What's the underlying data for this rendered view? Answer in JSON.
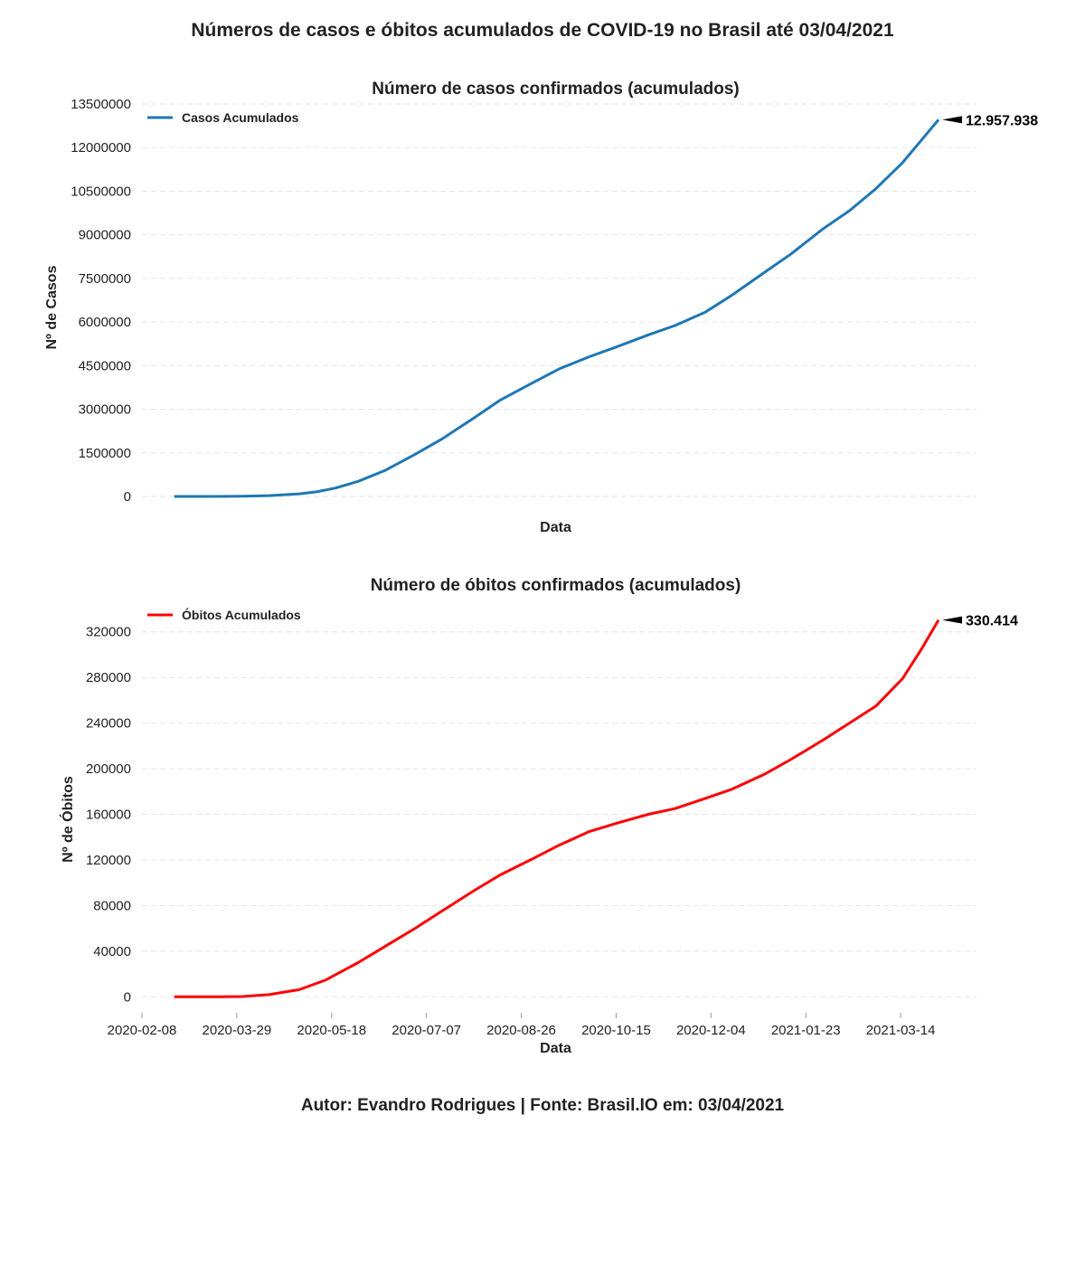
{
  "title": "Números de casos e óbitos acumulados de COVID-19 no Brasil até 03/04/2021",
  "footer": "Autor: Evandro Rodrigues | Fonte: Brasil.IO em: 03/04/2021",
  "chart_data": [
    {
      "type": "line",
      "title": "Número de casos confirmados (acumulados)",
      "xlabel": "Data",
      "ylabel": "Nº de Casos",
      "ylim": [
        0,
        13500000
      ],
      "yticks": [
        0,
        1500000,
        3000000,
        4500000,
        6000000,
        7500000,
        9000000,
        10500000,
        12000000,
        13500000
      ],
      "xticks": [],
      "x_range": [
        "2020-02-08",
        "2021-04-23"
      ],
      "grid": true,
      "legend_position": "top-left",
      "series": [
        {
          "name": "Casos Acumulados",
          "color": "#1f77b4",
          "x": [
            "2020-02-25",
            "2020-03-15",
            "2020-04-01",
            "2020-04-15",
            "2020-05-01",
            "2020-05-10",
            "2020-05-20",
            "2020-06-01",
            "2020-06-15",
            "2020-07-01",
            "2020-07-15",
            "2020-08-01",
            "2020-08-15",
            "2020-09-01",
            "2020-09-15",
            "2020-10-01",
            "2020-10-15",
            "2020-11-01",
            "2020-11-15",
            "2020-12-01",
            "2020-12-15",
            "2021-01-01",
            "2021-01-15",
            "2021-02-01",
            "2021-02-15",
            "2021-03-01",
            "2021-03-15",
            "2021-04-03"
          ],
          "y": [
            0,
            200,
            6800,
            28000,
            90000,
            160000,
            290000,
            520000,
            890000,
            1450000,
            1970000,
            2700000,
            3320000,
            3910000,
            4390000,
            4810000,
            5140000,
            5560000,
            5880000,
            6340000,
            6920000,
            7700000,
            8330000,
            9200000,
            9830000,
            10590000,
            11480000,
            12957938
          ],
          "end_label": "12.957.938"
        }
      ]
    },
    {
      "type": "line",
      "title": "Número de óbitos confirmados (acumulados)",
      "xlabel": "Data",
      "ylabel": "Nº de Óbitos",
      "ylim": [
        -18000,
        342000
      ],
      "yticks": [
        0,
        40000,
        80000,
        120000,
        160000,
        200000,
        240000,
        280000,
        320000
      ],
      "xticks": [
        "2020-02-08",
        "2020-03-29",
        "2020-05-18",
        "2020-07-07",
        "2020-08-26",
        "2020-10-15",
        "2020-12-04",
        "2021-01-23",
        "2021-03-14"
      ],
      "x_range": [
        "2020-02-08",
        "2021-04-23"
      ],
      "grid": true,
      "legend_position": "top-left",
      "series": [
        {
          "name": "Óbitos Acumulados",
          "color": "#ff0000",
          "x": [
            "2020-02-25",
            "2020-03-20",
            "2020-04-01",
            "2020-04-15",
            "2020-05-01",
            "2020-05-15",
            "2020-06-01",
            "2020-06-15",
            "2020-07-01",
            "2020-07-15",
            "2020-08-01",
            "2020-08-15",
            "2020-09-01",
            "2020-09-15",
            "2020-10-01",
            "2020-10-15",
            "2020-11-01",
            "2020-11-15",
            "2020-12-01",
            "2020-12-15",
            "2021-01-01",
            "2021-01-15",
            "2021-02-01",
            "2021-02-15",
            "2021-03-01",
            "2021-03-15",
            "2021-03-25",
            "2021-04-03"
          ],
          "y": [
            0,
            20,
            250,
            1900,
            6300,
            14800,
            30000,
            44000,
            60000,
            75000,
            93000,
            107000,
            121000,
            133000,
            145000,
            152000,
            160000,
            165000,
            174000,
            182000,
            195000,
            208000,
            225000,
            240000,
            255000,
            279000,
            305000,
            330414
          ],
          "end_label": "330.414"
        }
      ]
    }
  ]
}
